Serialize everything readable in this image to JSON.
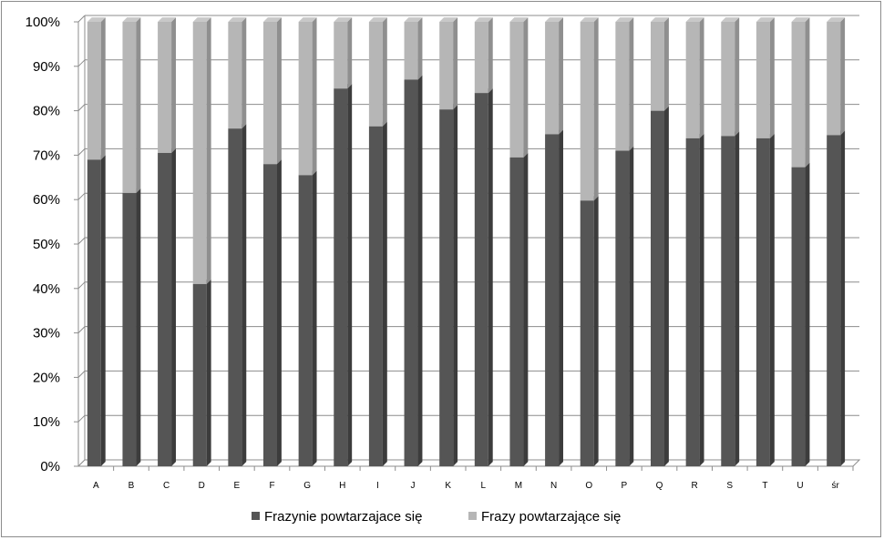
{
  "chart_data": {
    "type": "bar",
    "stacked": "percent",
    "categories": [
      "A",
      "B",
      "C",
      "D",
      "E",
      "F",
      "G",
      "H",
      "I",
      "J",
      "K",
      "L",
      "M",
      "N",
      "O",
      "P",
      "Q",
      "R",
      "S",
      "T",
      "U",
      "śr"
    ],
    "series": [
      {
        "name": "Frazynie powtarzajace się",
        "color": "#5a5a5a",
        "values": [
          69,
          61.5,
          70.5,
          41,
          76,
          68,
          65.5,
          85,
          76.5,
          87,
          80.3,
          84,
          69.5,
          74.7,
          59.8,
          71,
          80,
          73.8,
          74.3,
          73.8,
          67.3,
          74.5
        ]
      },
      {
        "name": "Frazy powtarzające się",
        "color": "#b4b4b4",
        "values": [
          31,
          38.5,
          29.5,
          59,
          24,
          32,
          34.5,
          15,
          23.5,
          13,
          19.7,
          16,
          30.5,
          25.3,
          40.2,
          29,
          20,
          26.2,
          25.7,
          26.2,
          32.7,
          25.5
        ]
      }
    ],
    "yticks": [
      "0%",
      "10%",
      "20%",
      "30%",
      "40%",
      "50%",
      "60%",
      "70%",
      "80%",
      "90%",
      "100%"
    ],
    "ylim": [
      0,
      100
    ],
    "grid": true,
    "legend_position": "bottom"
  }
}
